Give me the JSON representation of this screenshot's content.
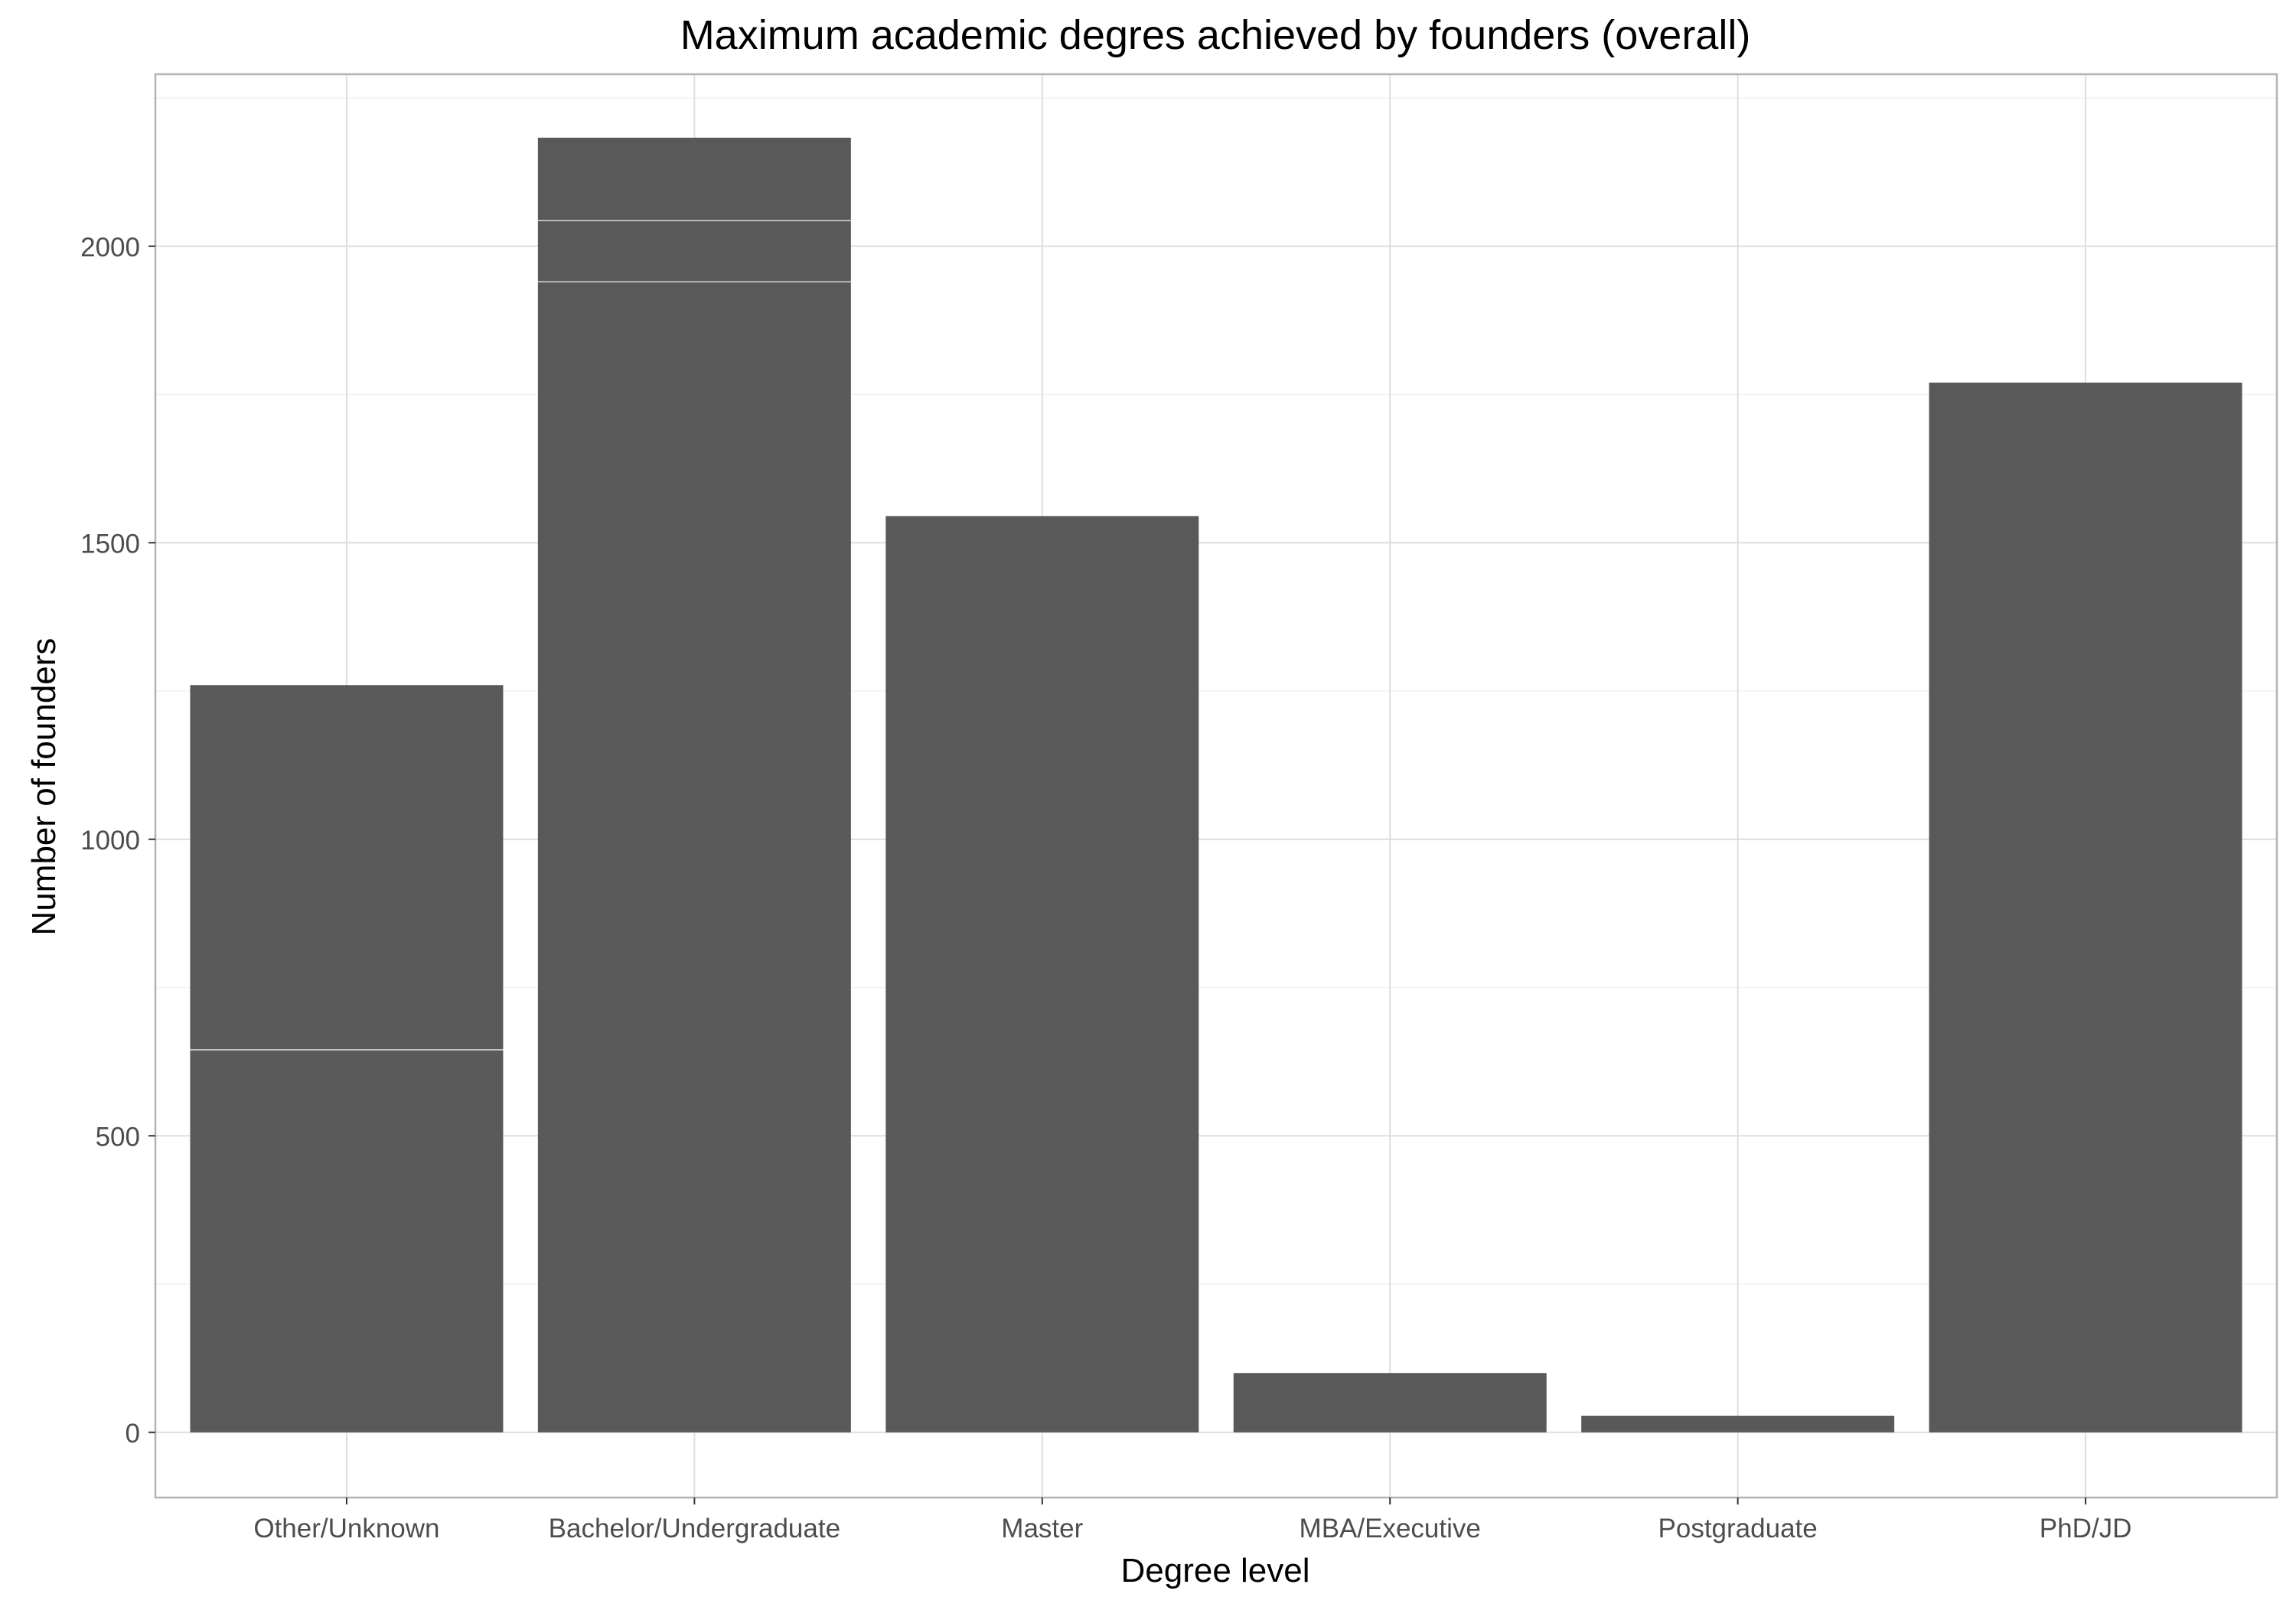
{
  "chart_data": {
    "type": "bar",
    "title": "Maximum academic degres achieved by founders (overall)",
    "xlabel": "Degree level",
    "ylabel": "Number of founders",
    "categories": [
      "Other/Unknown",
      "Bachelor/Undergraduate",
      "Master",
      "MBA/Executive",
      "Postgraduate",
      "PhD/JD"
    ],
    "values": [
      1260,
      2183,
      1545,
      100,
      28,
      1770
    ],
    "segments": [
      [
        645,
        615
      ],
      [
        1940,
        103,
        140
      ],
      [
        1545
      ],
      [
        100
      ],
      [
        28
      ],
      [
        1770
      ]
    ],
    "yticks": [
      0,
      500,
      1000,
      1500,
      2000
    ],
    "ytick_labels": [
      "0",
      "500",
      "1000",
      "1500",
      "2000"
    ],
    "ylim": [
      -110,
      2290
    ],
    "grid": true,
    "legend": "none",
    "colors": {
      "bar": "#595959",
      "segment_line": "#d9d9d9",
      "grid_major": "#dedede",
      "grid_minor": "#f2f2f2",
      "panel_border": "#b3b3b3"
    }
  }
}
